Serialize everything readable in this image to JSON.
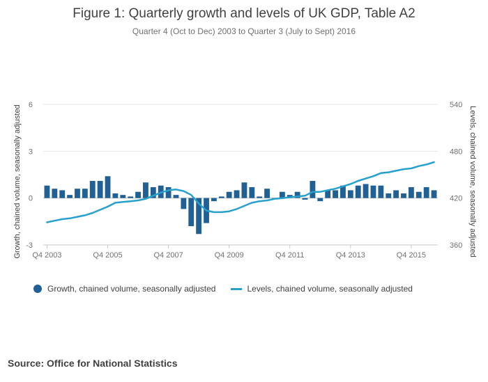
{
  "title": "Figure 1: Quarterly growth and levels of UK GDP, Table A2",
  "subtitle": "Quarter 4 (Oct to Dec) 2003 to Quarter 3 (July to Sept) 2016",
  "source": "Source: Office for National Statistics",
  "colors": {
    "growth": "#206095",
    "levels": "#27a0cc",
    "grid": "#e6e6e6",
    "axis": "#c8c8c8"
  },
  "chart_data": {
    "type": "bar+line",
    "title": "Figure 1: Quarterly growth and levels of UK GDP, Table A2",
    "subtitle": "Quarter 4 (Oct to Dec) 2003 to Quarter 3 (July to Sept) 2016",
    "xlabel": "",
    "ylabel_left": "Growth, chained volume, seasonally adjusted",
    "ylabel_right": "Levels, chained volume, seasonally adjusted",
    "ylim_left": [
      -3,
      6
    ],
    "ylim_right": [
      360,
      540
    ],
    "yticks_left": [
      "-3",
      "0",
      "3",
      "6"
    ],
    "yticks_right": [
      "360",
      "420",
      "480",
      "540"
    ],
    "xtick_labels": [
      "Q4 2003",
      "Q4 2005",
      "Q4 2007",
      "Q4 2009",
      "Q4 2011",
      "Q4 2013",
      "Q4 2015"
    ],
    "xtick_indices": [
      0,
      8,
      16,
      24,
      32,
      40,
      48
    ],
    "grid": true,
    "legend_position": "bottom",
    "categories": [
      "Q4 2003",
      "Q1 2004",
      "Q2 2004",
      "Q3 2004",
      "Q4 2004",
      "Q1 2005",
      "Q2 2005",
      "Q3 2005",
      "Q4 2005",
      "Q1 2006",
      "Q2 2006",
      "Q3 2006",
      "Q4 2006",
      "Q1 2007",
      "Q2 2007",
      "Q3 2007",
      "Q4 2007",
      "Q1 2008",
      "Q2 2008",
      "Q3 2008",
      "Q4 2008",
      "Q1 2009",
      "Q2 2009",
      "Q3 2009",
      "Q4 2009",
      "Q1 2010",
      "Q2 2010",
      "Q3 2010",
      "Q4 2010",
      "Q1 2011",
      "Q2 2011",
      "Q3 2011",
      "Q4 2011",
      "Q1 2012",
      "Q2 2012",
      "Q3 2012",
      "Q4 2012",
      "Q1 2013",
      "Q2 2013",
      "Q3 2013",
      "Q4 2013",
      "Q1 2014",
      "Q2 2014",
      "Q3 2014",
      "Q4 2014",
      "Q1 2015",
      "Q2 2015",
      "Q3 2015",
      "Q4 2015",
      "Q1 2016",
      "Q2 2016",
      "Q3 2016"
    ],
    "series": [
      {
        "name": "Growth, chained volume, seasonally adjusted",
        "type": "bar",
        "axis": "left",
        "values": [
          0.8,
          0.6,
          0.5,
          0.2,
          0.6,
          0.6,
          1.1,
          1.1,
          1.4,
          0.3,
          0.2,
          0.1,
          0.4,
          1.0,
          0.7,
          0.8,
          0.7,
          0.2,
          -0.7,
          -1.8,
          -2.3,
          -1.6,
          -0.2,
          0.1,
          0.4,
          0.5,
          1.0,
          0.7,
          0.1,
          0.6,
          0.0,
          0.4,
          0.2,
          0.4,
          -0.1,
          1.1,
          -0.2,
          0.5,
          0.5,
          0.8,
          0.5,
          0.8,
          0.9,
          0.8,
          0.8,
          0.3,
          0.5,
          0.3,
          0.7,
          0.4,
          0.7,
          0.5
        ]
      },
      {
        "name": "Levels, chained volume, seasonally adjusted",
        "type": "line",
        "axis": "right",
        "values": [
          389,
          391,
          393,
          394,
          396,
          398,
          401,
          405,
          409,
          414,
          415,
          416,
          417,
          419,
          423,
          427,
          430,
          431,
          429,
          424,
          413,
          404,
          402,
          402,
          403,
          406,
          410,
          414,
          416,
          417,
          419,
          420,
          421,
          422,
          423,
          428,
          428,
          430,
          432,
          435,
          438,
          442,
          445,
          448,
          452,
          453,
          455,
          457,
          458,
          461,
          463,
          466
        ]
      }
    ]
  }
}
